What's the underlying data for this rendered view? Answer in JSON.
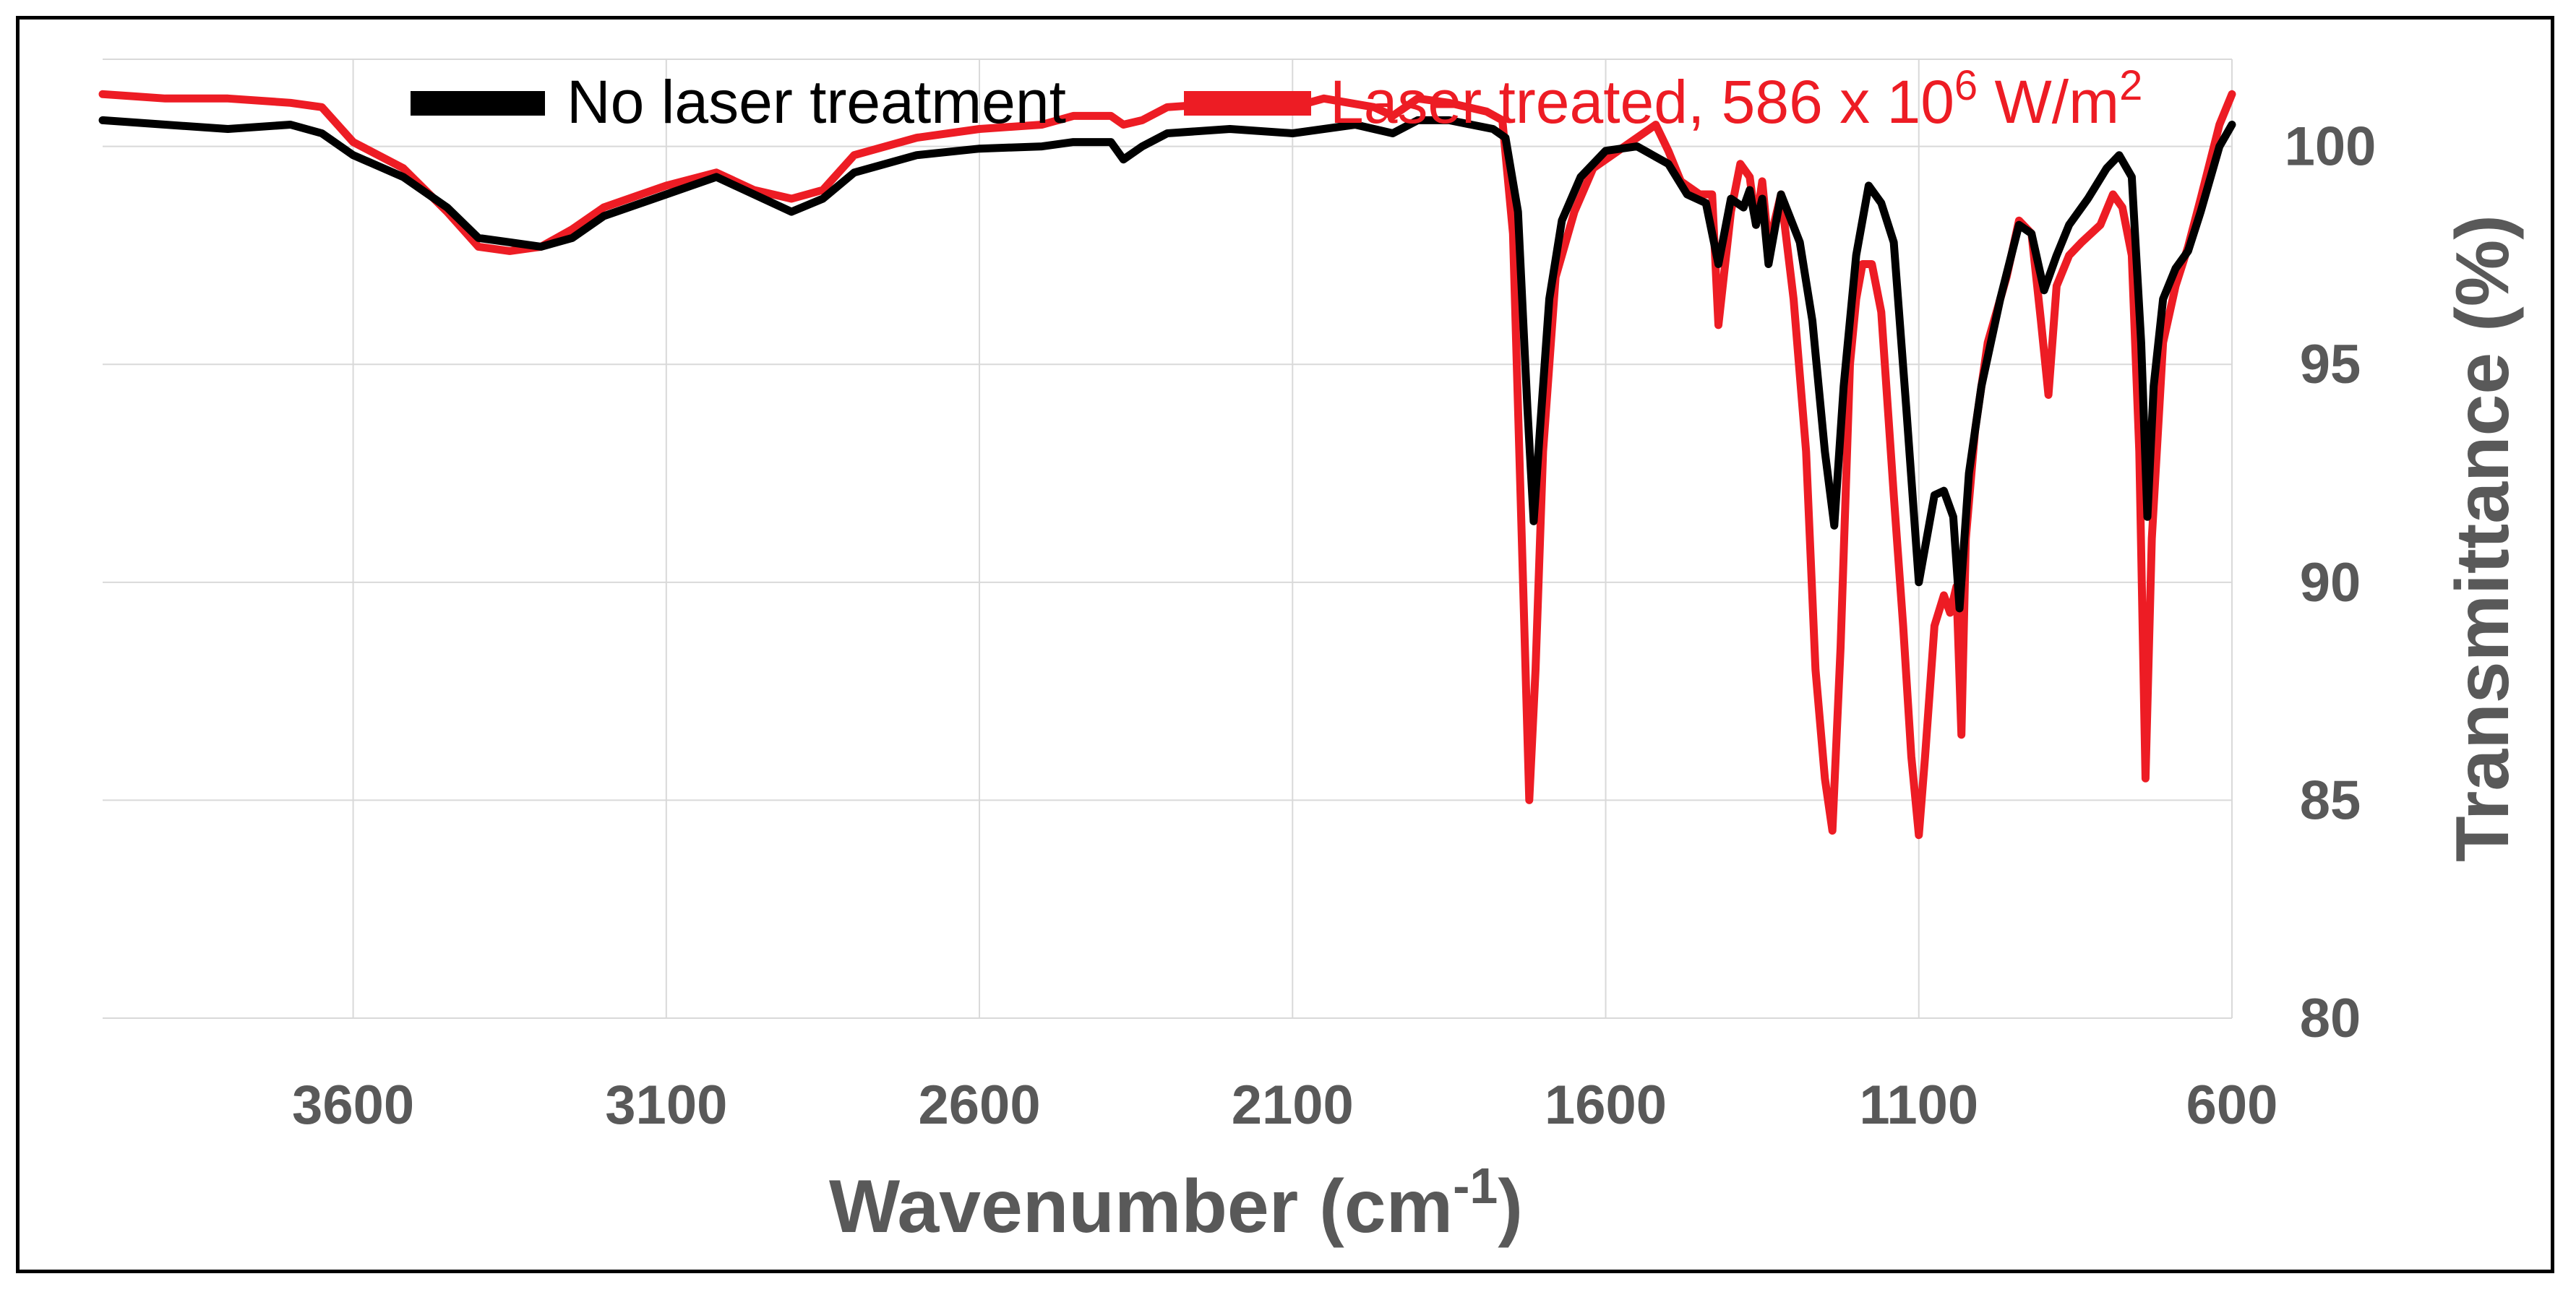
{
  "chart_data": {
    "type": "line",
    "xlabel": "Wavenumber (cm",
    "xlabel_sup": "-1",
    "xlabel_close": ")",
    "ylabel": "Transmittance (%)",
    "xlim": [
      4000,
      600
    ],
    "x_reversed": true,
    "ylim": [
      80,
      102
    ],
    "x_ticks": [
      "3600",
      "3100",
      "2600",
      "2100",
      "1600",
      "1100",
      "600"
    ],
    "x_tick_values": [
      3600,
      3100,
      2600,
      2100,
      1600,
      1100,
      600
    ],
    "y_ticks": [
      "80",
      "85",
      "90",
      "95",
      "100"
    ],
    "y_tick_values": [
      80,
      85,
      90,
      95,
      100
    ],
    "grid": true,
    "legend_position": "top",
    "legend": {
      "series1_label": "No laser treatment",
      "series2_label_main": "Laser treated, 586 x 10",
      "series2_label_sup": "6",
      "series2_label_unit": " W/m",
      "series2_label_sup2": "2"
    },
    "colors": {
      "series1": "#000000",
      "series2": "#ed1c24",
      "axis_text": "#595959",
      "grid": "#d9d9d9"
    },
    "series": [
      {
        "name": "No laser treatment",
        "color": "#000000",
        "points": [
          [
            4000,
            100.6
          ],
          [
            3900,
            100.5
          ],
          [
            3800,
            100.4
          ],
          [
            3700,
            100.5
          ],
          [
            3650,
            100.3
          ],
          [
            3600,
            99.8
          ],
          [
            3520,
            99.3
          ],
          [
            3450,
            98.6
          ],
          [
            3400,
            97.9
          ],
          [
            3350,
            97.8
          ],
          [
            3300,
            97.7
          ],
          [
            3250,
            97.9
          ],
          [
            3200,
            98.4
          ],
          [
            3100,
            98.9
          ],
          [
            3020,
            99.3
          ],
          [
            2960,
            98.9
          ],
          [
            2900,
            98.5
          ],
          [
            2850,
            98.8
          ],
          [
            2800,
            99.4
          ],
          [
            2700,
            99.8
          ],
          [
            2600,
            99.95
          ],
          [
            2500,
            100.0
          ],
          [
            2450,
            100.1
          ],
          [
            2390,
            100.1
          ],
          [
            2370,
            99.7
          ],
          [
            2340,
            100.0
          ],
          [
            2300,
            100.3
          ],
          [
            2200,
            100.4
          ],
          [
            2100,
            100.3
          ],
          [
            2000,
            100.5
          ],
          [
            1940,
            100.3
          ],
          [
            1900,
            100.6
          ],
          [
            1850,
            100.6
          ],
          [
            1780,
            100.4
          ],
          [
            1760,
            100.2
          ],
          [
            1740,
            98.5
          ],
          [
            1725,
            94.0
          ],
          [
            1715,
            91.4
          ],
          [
            1705,
            93.5
          ],
          [
            1690,
            96.5
          ],
          [
            1670,
            98.3
          ],
          [
            1640,
            99.3
          ],
          [
            1600,
            99.9
          ],
          [
            1550,
            100.0
          ],
          [
            1500,
            99.6
          ],
          [
            1470,
            98.9
          ],
          [
            1440,
            98.7
          ],
          [
            1420,
            97.3
          ],
          [
            1400,
            98.8
          ],
          [
            1380,
            98.6
          ],
          [
            1370,
            99.0
          ],
          [
            1360,
            98.2
          ],
          [
            1350,
            98.8
          ],
          [
            1340,
            97.3
          ],
          [
            1320,
            98.9
          ],
          [
            1290,
            97.8
          ],
          [
            1270,
            96.0
          ],
          [
            1250,
            93.0
          ],
          [
            1235,
            91.3
          ],
          [
            1220,
            94.5
          ],
          [
            1200,
            97.5
          ],
          [
            1180,
            99.1
          ],
          [
            1160,
            98.7
          ],
          [
            1140,
            97.8
          ],
          [
            1120,
            94.0
          ],
          [
            1100,
            90.0
          ],
          [
            1090,
            90.8
          ],
          [
            1075,
            92.0
          ],
          [
            1060,
            92.1
          ],
          [
            1045,
            91.5
          ],
          [
            1035,
            89.4
          ],
          [
            1020,
            92.5
          ],
          [
            1000,
            94.5
          ],
          [
            970,
            96.5
          ],
          [
            940,
            98.2
          ],
          [
            920,
            98.0
          ],
          [
            900,
            96.7
          ],
          [
            880,
            97.5
          ],
          [
            860,
            98.2
          ],
          [
            830,
            98.8
          ],
          [
            800,
            99.5
          ],
          [
            780,
            99.8
          ],
          [
            760,
            99.3
          ],
          [
            745,
            95.5
          ],
          [
            735,
            91.5
          ],
          [
            725,
            94.5
          ],
          [
            710,
            96.5
          ],
          [
            690,
            97.2
          ],
          [
            670,
            97.6
          ],
          [
            650,
            98.5
          ],
          [
            620,
            100.0
          ],
          [
            600,
            100.5
          ]
        ]
      },
      {
        "name": "Laser treated, 586 x 10^6 W/m^2",
        "color": "#ed1c24",
        "points": [
          [
            4000,
            101.2
          ],
          [
            3900,
            101.1
          ],
          [
            3800,
            101.1
          ],
          [
            3700,
            101.0
          ],
          [
            3650,
            100.9
          ],
          [
            3600,
            100.1
          ],
          [
            3520,
            99.5
          ],
          [
            3450,
            98.5
          ],
          [
            3400,
            97.7
          ],
          [
            3350,
            97.6
          ],
          [
            3300,
            97.7
          ],
          [
            3250,
            98.1
          ],
          [
            3200,
            98.6
          ],
          [
            3100,
            99.1
          ],
          [
            3020,
            99.4
          ],
          [
            2960,
            99.0
          ],
          [
            2900,
            98.8
          ],
          [
            2850,
            99.0
          ],
          [
            2800,
            99.8
          ],
          [
            2700,
            100.2
          ],
          [
            2600,
            100.4
          ],
          [
            2500,
            100.5
          ],
          [
            2450,
            100.7
          ],
          [
            2390,
            100.7
          ],
          [
            2370,
            100.5
          ],
          [
            2340,
            100.6
          ],
          [
            2300,
            100.9
          ],
          [
            2200,
            101.0
          ],
          [
            2100,
            100.9
          ],
          [
            2050,
            101.1
          ],
          [
            1970,
            100.9
          ],
          [
            1940,
            100.7
          ],
          [
            1900,
            101.1
          ],
          [
            1850,
            101.0
          ],
          [
            1790,
            100.8
          ],
          [
            1765,
            100.6
          ],
          [
            1748,
            98.0
          ],
          [
            1732,
            90.0
          ],
          [
            1722,
            85.0
          ],
          [
            1712,
            88.0
          ],
          [
            1700,
            93.0
          ],
          [
            1680,
            97.0
          ],
          [
            1650,
            98.5
          ],
          [
            1620,
            99.5
          ],
          [
            1560,
            100.1
          ],
          [
            1520,
            100.5
          ],
          [
            1500,
            99.9
          ],
          [
            1480,
            99.2
          ],
          [
            1450,
            98.9
          ],
          [
            1430,
            98.9
          ],
          [
            1420,
            95.9
          ],
          [
            1400,
            98.5
          ],
          [
            1385,
            99.6
          ],
          [
            1370,
            99.3
          ],
          [
            1360,
            98.2
          ],
          [
            1350,
            99.2
          ],
          [
            1340,
            97.7
          ],
          [
            1320,
            98.9
          ],
          [
            1300,
            96.5
          ],
          [
            1280,
            93.0
          ],
          [
            1265,
            88.0
          ],
          [
            1250,
            85.5
          ],
          [
            1238,
            84.3
          ],
          [
            1225,
            88.5
          ],
          [
            1210,
            95.0
          ],
          [
            1200,
            96.5
          ],
          [
            1190,
            97.3
          ],
          [
            1175,
            97.3
          ],
          [
            1160,
            96.2
          ],
          [
            1140,
            92.0
          ],
          [
            1125,
            89.0
          ],
          [
            1112,
            86.0
          ],
          [
            1100,
            84.2
          ],
          [
            1090,
            86.0
          ],
          [
            1075,
            89.0
          ],
          [
            1060,
            89.7
          ],
          [
            1050,
            89.3
          ],
          [
            1040,
            89.9
          ],
          [
            1032,
            86.5
          ],
          [
            1025,
            91.0
          ],
          [
            1010,
            93.5
          ],
          [
            990,
            95.5
          ],
          [
            960,
            97.0
          ],
          [
            940,
            98.3
          ],
          [
            920,
            98.0
          ],
          [
            905,
            96.0
          ],
          [
            893,
            94.3
          ],
          [
            880,
            96.8
          ],
          [
            860,
            97.5
          ],
          [
            840,
            97.8
          ],
          [
            810,
            98.2
          ],
          [
            790,
            98.9
          ],
          [
            775,
            98.6
          ],
          [
            760,
            97.5
          ],
          [
            748,
            93.0
          ],
          [
            738,
            85.5
          ],
          [
            728,
            91.0
          ],
          [
            710,
            95.5
          ],
          [
            690,
            96.8
          ],
          [
            670,
            97.7
          ],
          [
            650,
            98.8
          ],
          [
            620,
            100.5
          ],
          [
            600,
            101.2
          ]
        ]
      }
    ]
  }
}
